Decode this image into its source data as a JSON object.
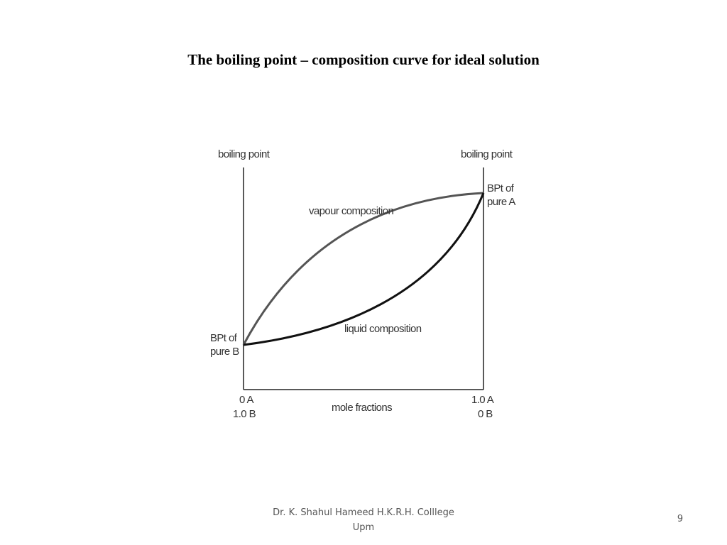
{
  "slide": {
    "title": "The boiling point – composition curve for ideal solution",
    "footer_line1": "Dr. K. Shahul Hameed H.K.R.H. Colllege",
    "footer_line2": "Upm",
    "page_number": "9"
  },
  "diagram": {
    "left_axis_label": "boiling point",
    "right_axis_label": "boiling point",
    "bpt_a_line1": "BPt of",
    "bpt_a_line2": "pure A",
    "bpt_b_line1": "BPt of",
    "bpt_b_line2": "pure B",
    "vapour_label": "vapour composition",
    "liquid_label": "liquid composition",
    "x_left_line1": "0 A",
    "x_left_line2": "1.0 B",
    "x_right_line1": "1.0 A",
    "x_right_line2": "0 B",
    "x_axis_label": "mole fractions",
    "colors": {
      "axis": "#222222",
      "vapour_curve": "#555555",
      "liquid_curve": "#111111"
    }
  }
}
